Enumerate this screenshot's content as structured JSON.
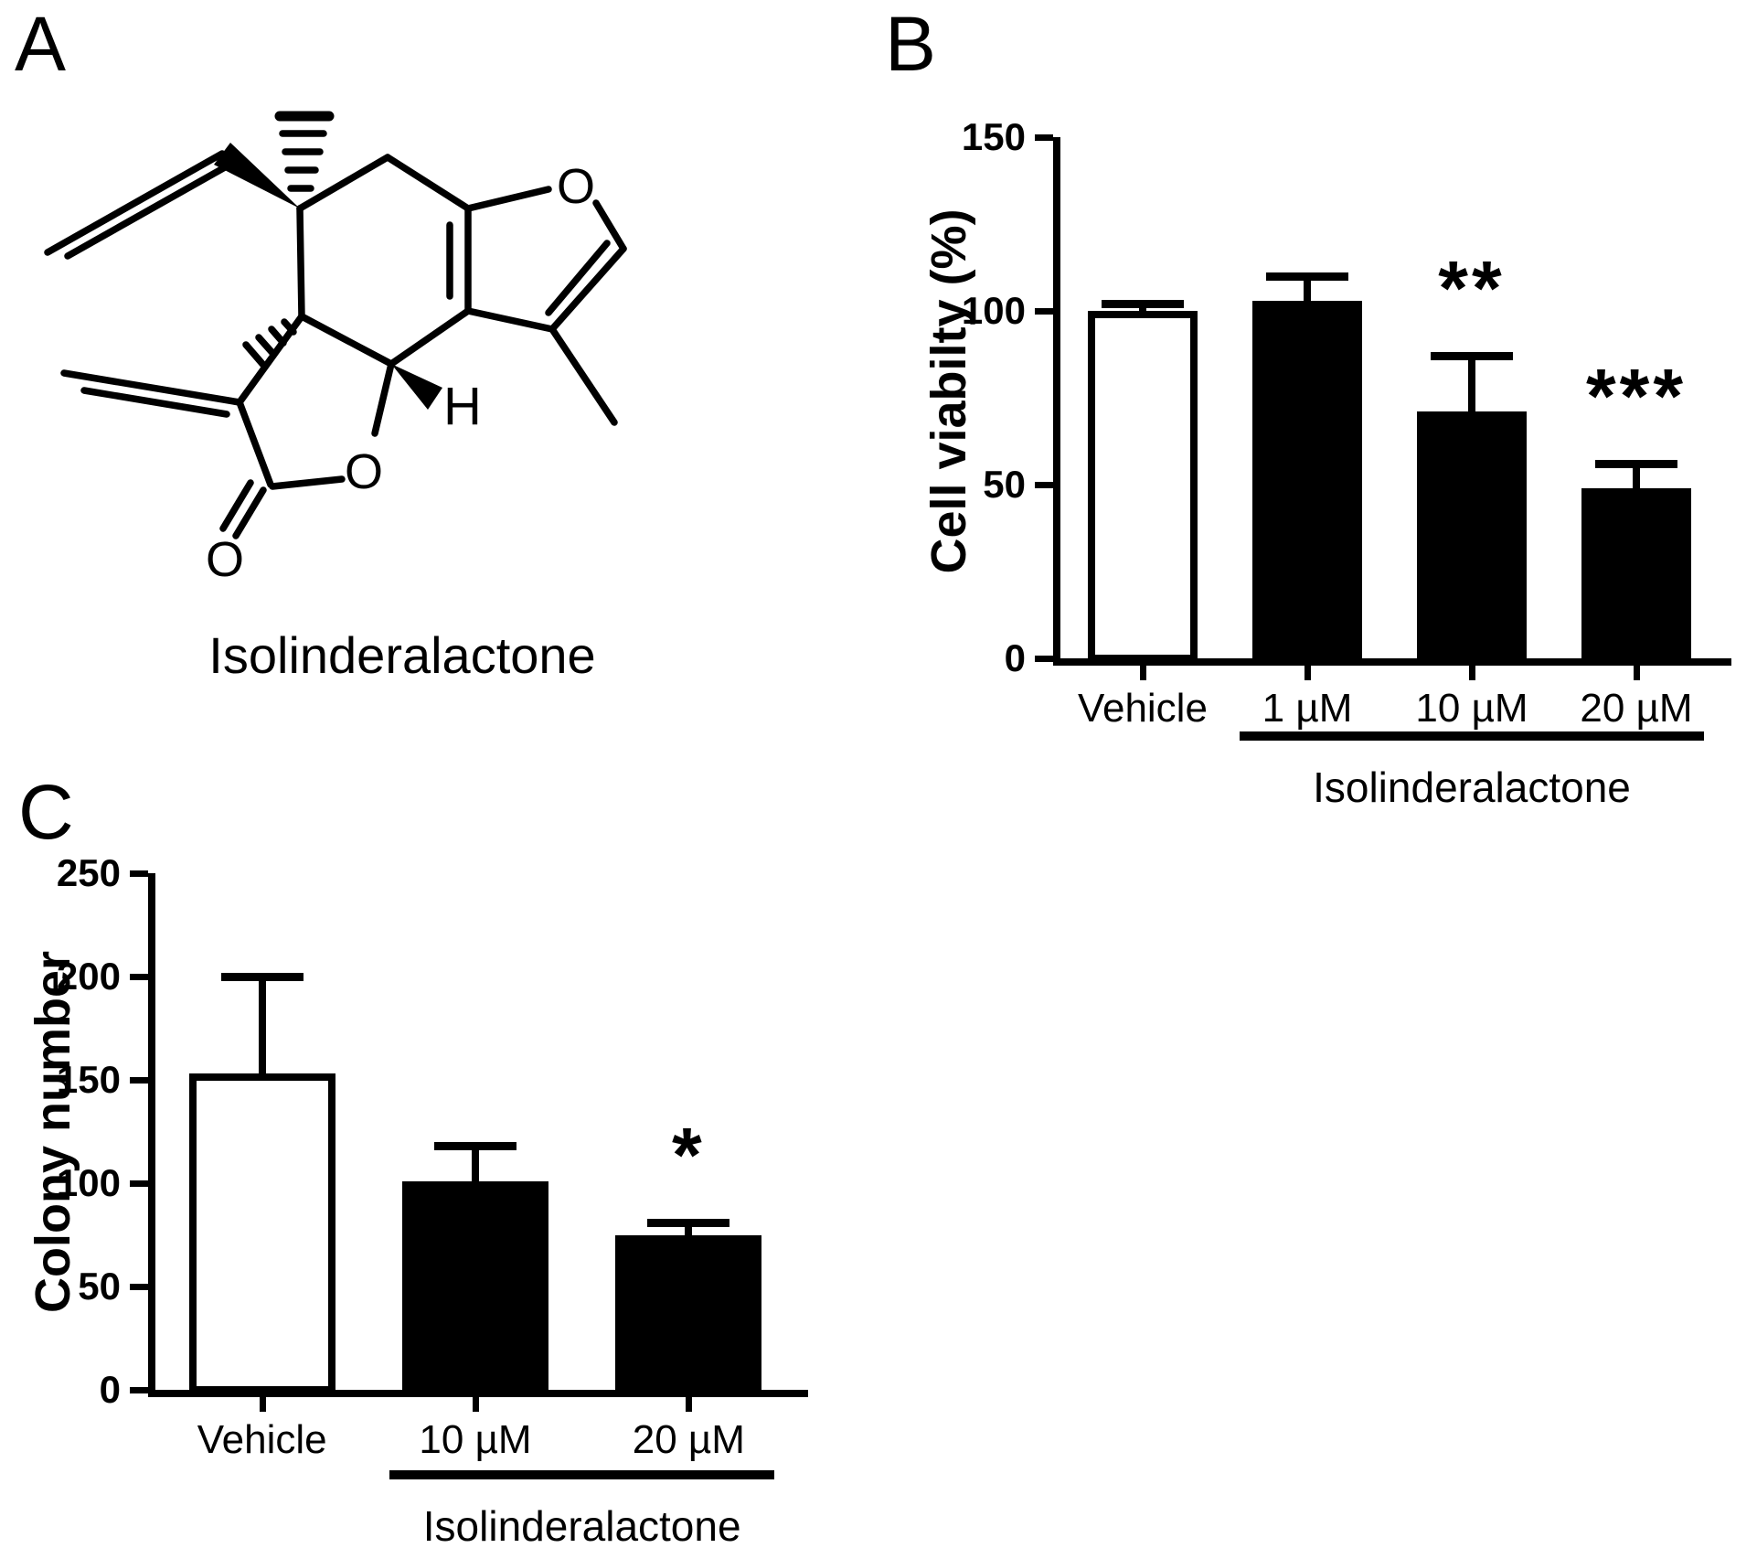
{
  "figure": {
    "panels": [
      {
        "id": "A",
        "letter": "A",
        "compound_name": "Isolinderalactone",
        "molecule": {
          "atom_labels": [
            {
              "id": "furan-oxygen",
              "text": "O"
            },
            {
              "id": "lactone-ring-oxygen",
              "text": "O"
            },
            {
              "id": "carbonyl-oxygen",
              "text": "O"
            },
            {
              "id": "ring-fusion-hydrogen",
              "text": "H"
            }
          ]
        }
      },
      {
        "id": "B",
        "letter": "B"
      },
      {
        "id": "C",
        "letter": "C"
      }
    ]
  },
  "chart_data": [
    {
      "panel": "B",
      "type": "bar",
      "title": "",
      "categories": [
        "Vehicle",
        "1 µM",
        "10 µM",
        "20 µM"
      ],
      "values": [
        100,
        103,
        71,
        49
      ],
      "errors_plus": [
        2,
        7,
        16,
        7
      ],
      "significance": [
        "",
        "",
        "**",
        "***"
      ],
      "bar_fills": [
        "#ffffff",
        "#000000",
        "#000000",
        "#000000"
      ],
      "bar_border": "#000000",
      "xlabel": "",
      "ylabel": "Cell viabilty (%)",
      "ylim": [
        0,
        150
      ],
      "yticks": [
        0,
        50,
        100,
        150
      ],
      "grid": false,
      "legend": "none",
      "group_label": {
        "text": "Isolinderalactone",
        "from_index": 1,
        "to_index": 3
      }
    },
    {
      "panel": "C",
      "type": "bar",
      "title": "",
      "categories": [
        "Vehicle",
        "10 µM",
        "20 µM"
      ],
      "values": [
        153,
        101,
        75
      ],
      "errors_plus": [
        47,
        17,
        6
      ],
      "significance": [
        "",
        "",
        "*"
      ],
      "bar_fills": [
        "#ffffff",
        "#000000",
        "#000000"
      ],
      "bar_border": "#000000",
      "xlabel": "",
      "ylabel": "Colony number",
      "ylim": [
        0,
        250
      ],
      "yticks": [
        0,
        50,
        100,
        150,
        200,
        250
      ],
      "grid": false,
      "legend": "none",
      "group_label": {
        "text": "Isolinderalactone",
        "from_index": 1,
        "to_index": 2
      }
    }
  ]
}
